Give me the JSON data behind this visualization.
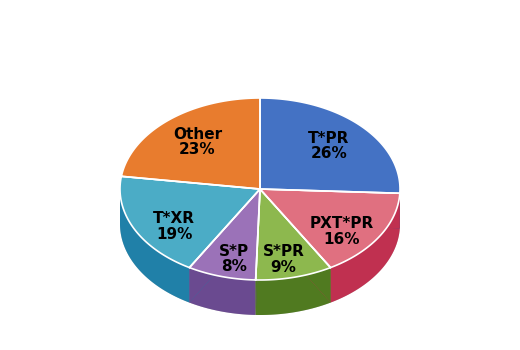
{
  "labels": [
    "T*PR",
    "PXT*PR",
    "S*PR",
    "S*P",
    "T*XR",
    "Other"
  ],
  "values": [
    26,
    16,
    9,
    8,
    19,
    23
  ],
  "colors": [
    "#4472C4",
    "#E07080",
    "#8DB84E",
    "#9B72B8",
    "#4BACC6",
    "#E87C2E"
  ],
  "shadow_colors": [
    "#2255A0",
    "#C03050",
    "#507A20",
    "#6A4A90",
    "#2080A8",
    "#C05010"
  ],
  "figsize": [
    5.2,
    3.5
  ],
  "dpi": 100,
  "label_fontsize": 11
}
